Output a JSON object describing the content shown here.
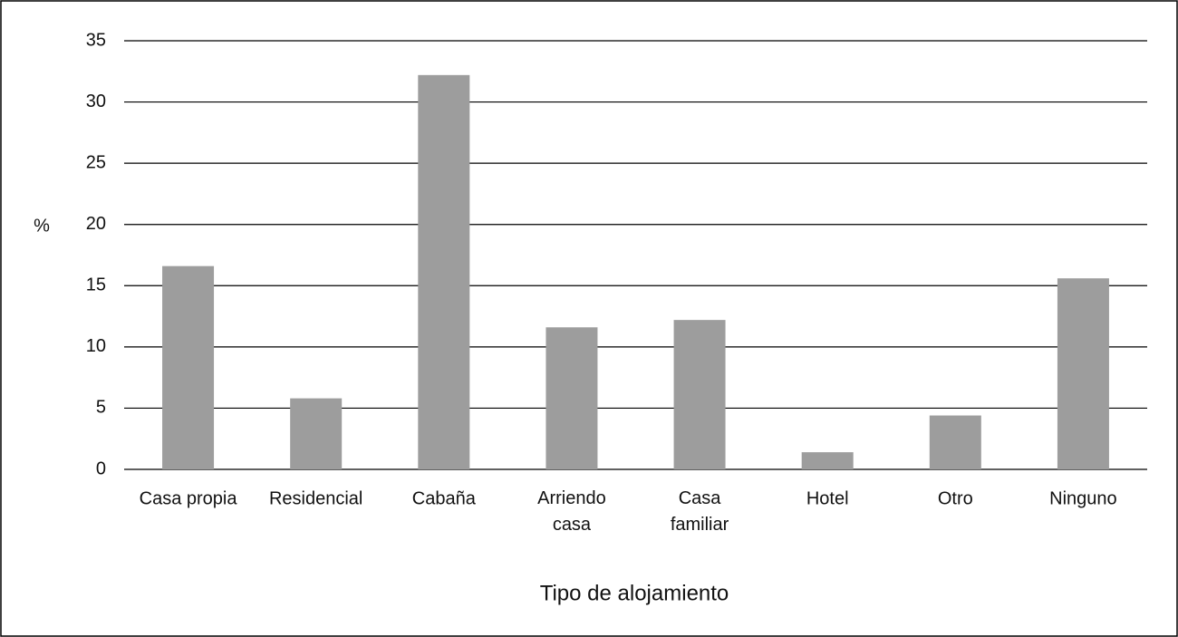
{
  "chart_data": {
    "type": "bar",
    "y_label": "%",
    "x_label": "Tipo de alojamiento",
    "categories": [
      "Casa propia",
      "Residencial",
      "Cabaña",
      "Arriendo casa",
      "Casa familiar",
      "Hotel",
      "Otro",
      "Ninguno"
    ],
    "values": [
      16.6,
      5.8,
      32.2,
      11.6,
      12.2,
      1.4,
      4.4,
      15.6
    ],
    "color": "#9d9d9d",
    "ylim": [
      0,
      35
    ],
    "yticks": [
      0,
      5,
      10,
      15,
      20,
      25,
      30,
      35
    ],
    "grid": true
  }
}
